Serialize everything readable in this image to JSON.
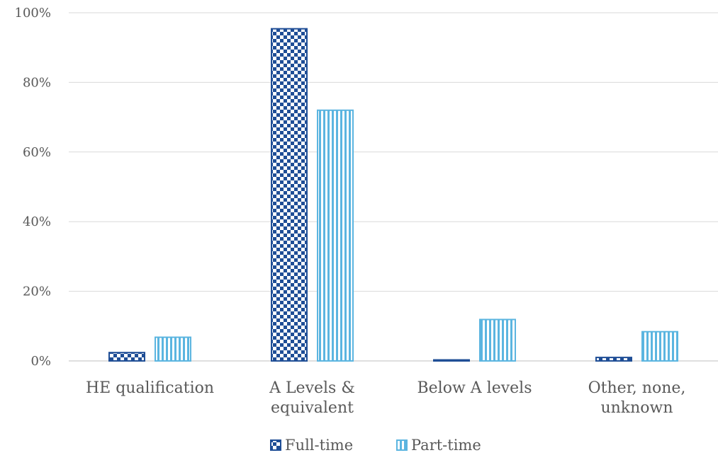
{
  "chart_data": {
    "type": "bar",
    "title": "",
    "xlabel": "",
    "ylabel": "",
    "categories": [
      [
        "HE qualification"
      ],
      [
        "A Levels &",
        "equivalent"
      ],
      [
        "Below A levels"
      ],
      [
        "Other, none,",
        "unknown"
      ]
    ],
    "series": [
      {
        "name": "Full-time",
        "values": [
          2.6,
          95.6,
          0.5,
          1.2
        ],
        "color": "#1f4e96",
        "pattern": "checkerboard"
      },
      {
        "name": "Part-time",
        "values": [
          7.0,
          72.2,
          12.1,
          8.6
        ],
        "color": "#5bb5e0",
        "pattern": "vertical-stripes"
      }
    ],
    "ylim": [
      0,
      100
    ],
    "yticks": [
      0,
      20,
      40,
      60,
      80,
      100
    ],
    "ytick_labels": [
      "0%",
      "20%",
      "40%",
      "60%",
      "80%",
      "100%"
    ],
    "grid": true,
    "legend_position": "bottom"
  }
}
